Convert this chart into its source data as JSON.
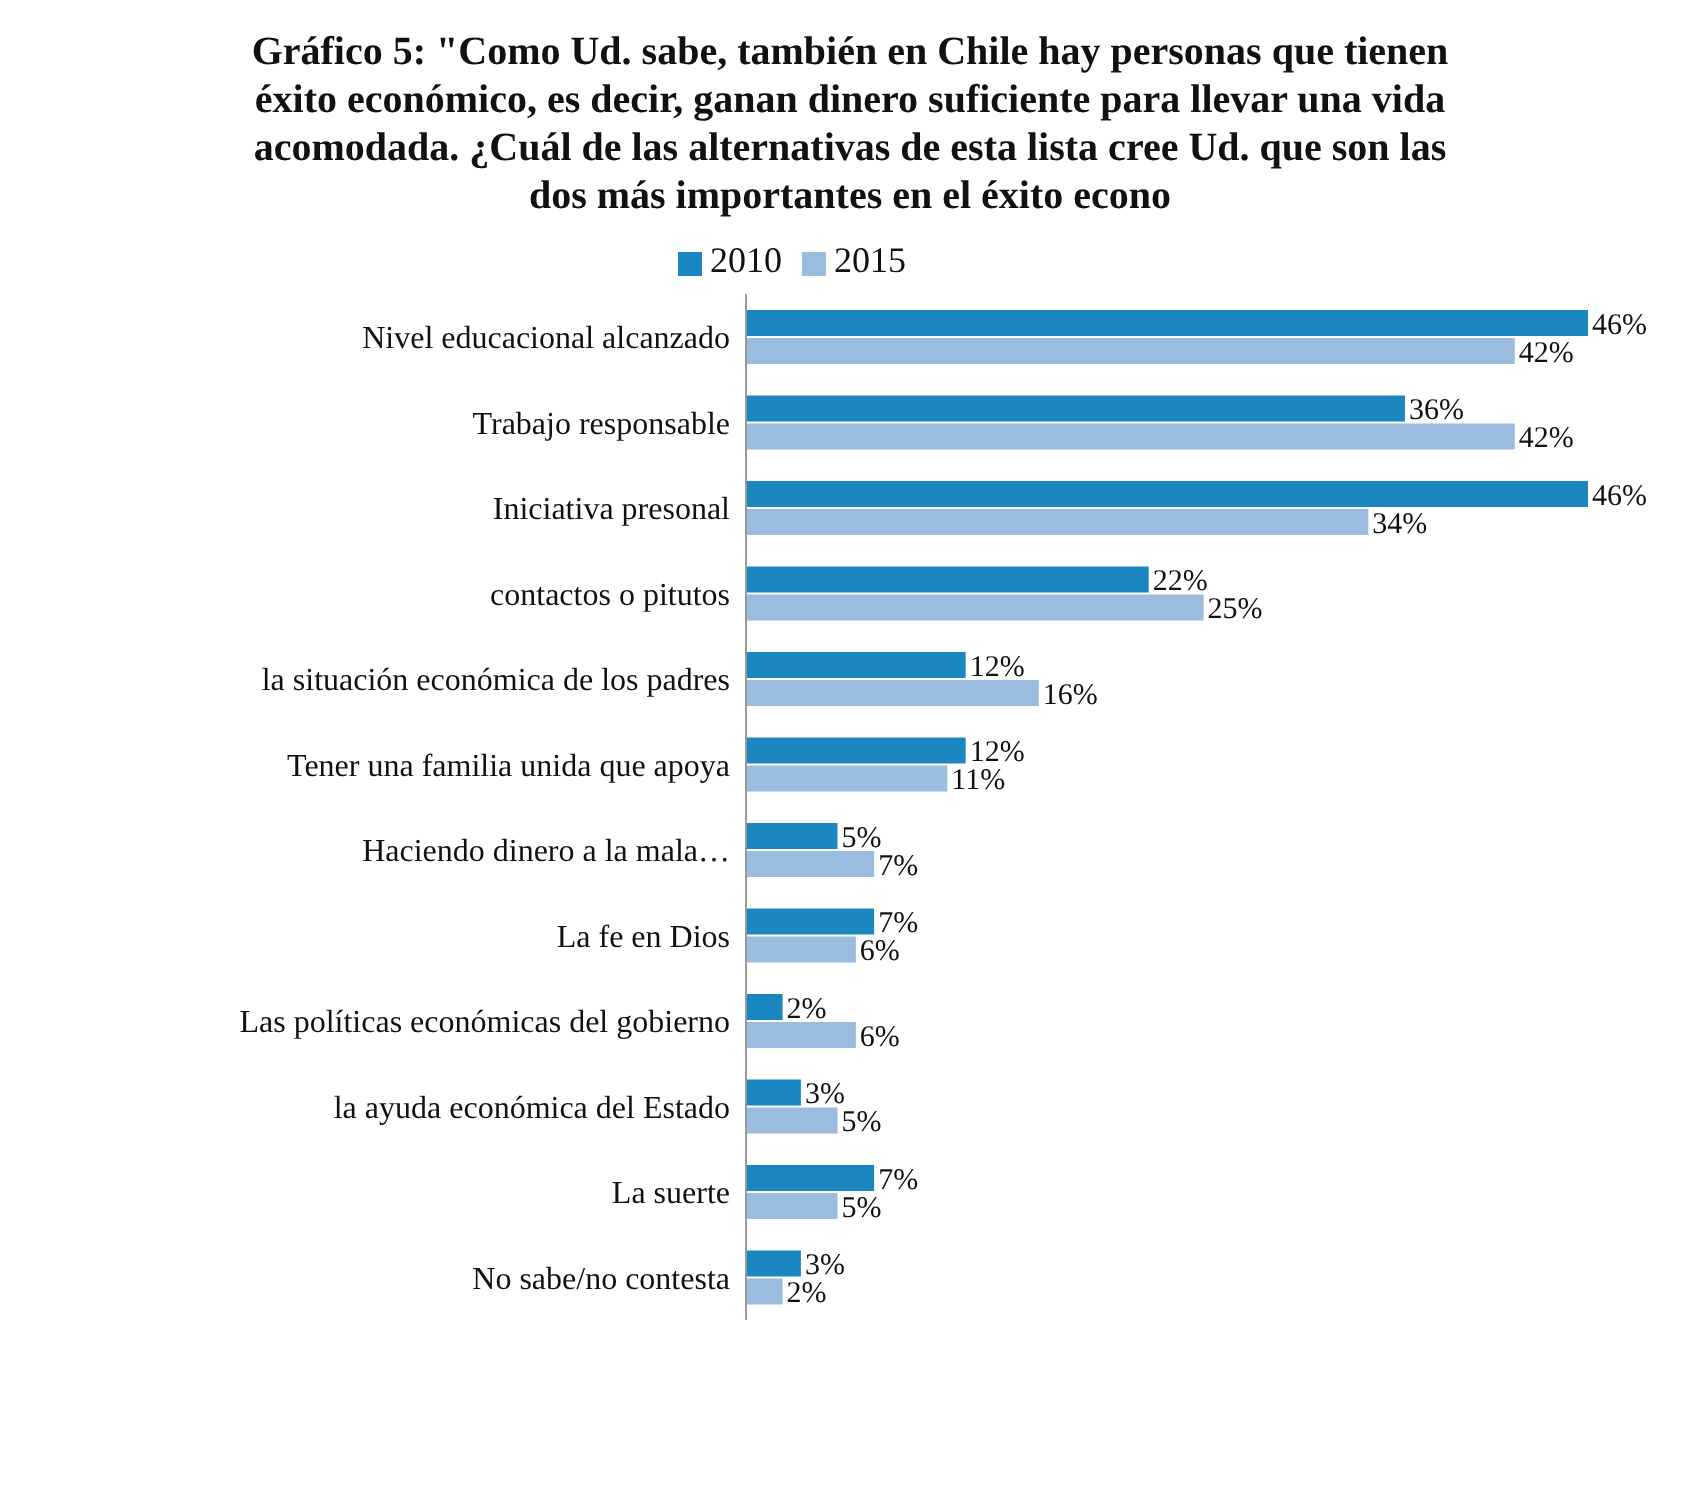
{
  "chart_data": {
    "type": "bar",
    "orientation": "horizontal",
    "title": "Gráfico 5: \"Como Ud. sabe, también en Chile hay personas que tienen éxito económico, es decir, ganan dinero suficiente para llevar una vida acomodada. ¿Cuál de las alternativas de esta lista cree Ud. que son las dos más importantes en el éxito econo",
    "categories": [
      "Nivel educacional alcanzado",
      "Trabajo responsable",
      "Iniciativa presonal",
      "contactos o pitutos",
      "la situación económica de los padres",
      "Tener una familia unida que apoya",
      "Haciendo dinero a la mala…",
      "La fe en Dios",
      "Las políticas económicas del gobierno",
      "la ayuda económica del Estado",
      "La suerte",
      "No sabe/no contesta"
    ],
    "series": [
      {
        "name": "2010",
        "color": "#1a87c0",
        "values": [
          46,
          36,
          46,
          22,
          12,
          12,
          5,
          7,
          2,
          3,
          7,
          3
        ],
        "value_labels": [
          "46%",
          "36%",
          "46%",
          "22%",
          "12%",
          "12%",
          "5%",
          "7%",
          "2%",
          "3%",
          "7%",
          "3%"
        ]
      },
      {
        "name": "2015",
        "color": "#9abcde",
        "values": [
          42,
          42,
          34,
          25,
          16,
          11,
          7,
          6,
          6,
          5,
          5,
          2
        ],
        "value_labels": [
          "42%",
          "42%",
          "34%",
          "25%",
          "16%",
          "11%",
          "7%",
          "6%",
          "6%",
          "5%",
          "5%",
          "2%"
        ]
      }
    ],
    "legend": "top"
  }
}
